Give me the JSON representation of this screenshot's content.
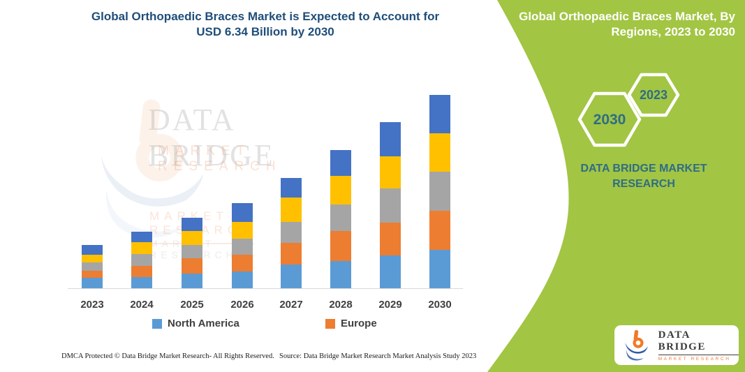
{
  "page": {
    "title_line1": "Global Orthopaedic Braces Market is Expected to Account for",
    "title_line2": "USD 6.34 Billion by 2030"
  },
  "sidebar": {
    "heading_line1": "Global Orthopaedic Braces Market, By",
    "heading_line2": "Regions, 2023 to 2030",
    "hexagons": [
      {
        "label": "2030"
      },
      {
        "label": "2023"
      }
    ],
    "brand_line1": "DATA BRIDGE MARKET",
    "brand_line2": "RESEARCH",
    "accent_green": "#A2C543",
    "teal_text_color": "#2F6D86"
  },
  "brand": {
    "name": "DATA BRIDGE",
    "subtitle": "MARKET RESEARCH"
  },
  "watermark": {
    "line1": "DATA BRIDGE",
    "line2": "MARKET RESEARCH"
  },
  "footer": {
    "left": "DMCA Protected © Data Bridge Market Research-  All Rights Reserved.",
    "right": "Source: Data Bridge Market Research  Market Analysis Study 2023"
  },
  "chart_data": {
    "type": "bar",
    "stacked": true,
    "title": "Global Orthopaedic Braces Market is Expected to Account for USD 6.34 Billion by 2030",
    "unit": "USD billion (estimated from bar heights; only 2030 total of 6.34 is labeled)",
    "categories": [
      "2023",
      "2024",
      "2025",
      "2026",
      "2027",
      "2028",
      "2029",
      "2030"
    ],
    "stack_order": "bottom-to-top",
    "series": [
      {
        "name": "North America",
        "color": "#5B9BD5",
        "in_legend": true,
        "values": [
          0.34,
          0.37,
          0.48,
          0.56,
          0.78,
          0.89,
          1.08,
          1.27
        ]
      },
      {
        "name": "Europe",
        "color": "#ED7D31",
        "in_legend": true,
        "values": [
          0.23,
          0.37,
          0.51,
          0.53,
          0.7,
          0.98,
          1.08,
          1.27
        ]
      },
      {
        "name": "unlabeled-region-gray",
        "color": "#A5A5A5",
        "in_legend": false,
        "values": [
          0.27,
          0.37,
          0.43,
          0.54,
          0.69,
          0.88,
          1.11,
          1.28
        ]
      },
      {
        "name": "unlabeled-region-yellow",
        "color": "#FFC000",
        "in_legend": false,
        "values": [
          0.25,
          0.4,
          0.45,
          0.55,
          0.8,
          0.93,
          1.05,
          1.26
        ]
      },
      {
        "name": "unlabeled-region-blue",
        "color": "#4472C4",
        "in_legend": false,
        "values": [
          0.32,
          0.34,
          0.43,
          0.62,
          0.64,
          0.86,
          1.12,
          1.26
        ]
      }
    ],
    "totals": [
      1.41,
      1.85,
      2.3,
      2.8,
      3.61,
      4.54,
      5.44,
      6.34
    ],
    "annotated_total_2030": 6.34,
    "ylim": [
      0,
      6.5
    ],
    "y_axis_visible": false,
    "gridlines": false,
    "legend_position": "bottom",
    "legend_entries": [
      "North America",
      "Europe"
    ]
  }
}
